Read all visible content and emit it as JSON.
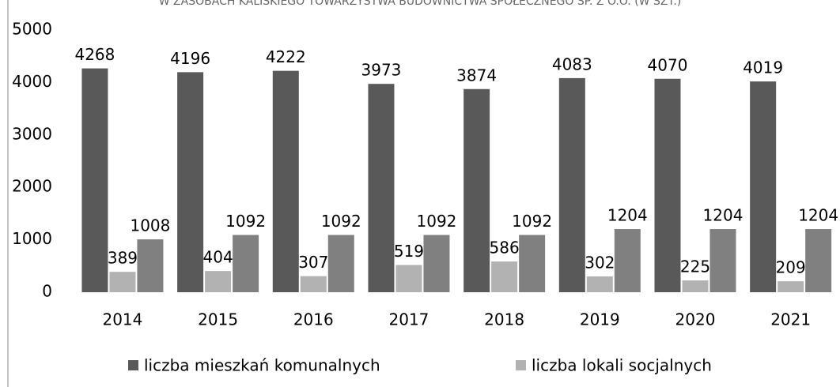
{
  "chart_data": {
    "type": "bar",
    "title": "W ZASOBACH KALISKIEGO TOWARZYSTWA BUDOWNICTWA SPOŁECZNEGO SP. Z O.O. (W SZT.)",
    "categories": [
      "2014",
      "2015",
      "2016",
      "2017",
      "2018",
      "2019",
      "2020",
      "2021"
    ],
    "series": [
      {
        "name": "liczba mieszkań komunalnych",
        "color": "#595959",
        "values": [
          4268,
          4196,
          4222,
          3973,
          3874,
          4083,
          4070,
          4019
        ]
      },
      {
        "name": "liczba lokali socjalnych",
        "color": "#b2b2b2",
        "values": [
          389,
          404,
          307,
          519,
          586,
          302,
          225,
          209
        ]
      },
      {
        "color": "#808080",
        "values": [
          1008,
          1092,
          1092,
          1092,
          1092,
          1204,
          1204,
          1204
        ]
      }
    ],
    "ylim": [
      0,
      5000
    ],
    "yticks": [
      0,
      1000,
      2000,
      3000,
      4000,
      5000
    ],
    "grid": false,
    "legend": "bottom"
  }
}
